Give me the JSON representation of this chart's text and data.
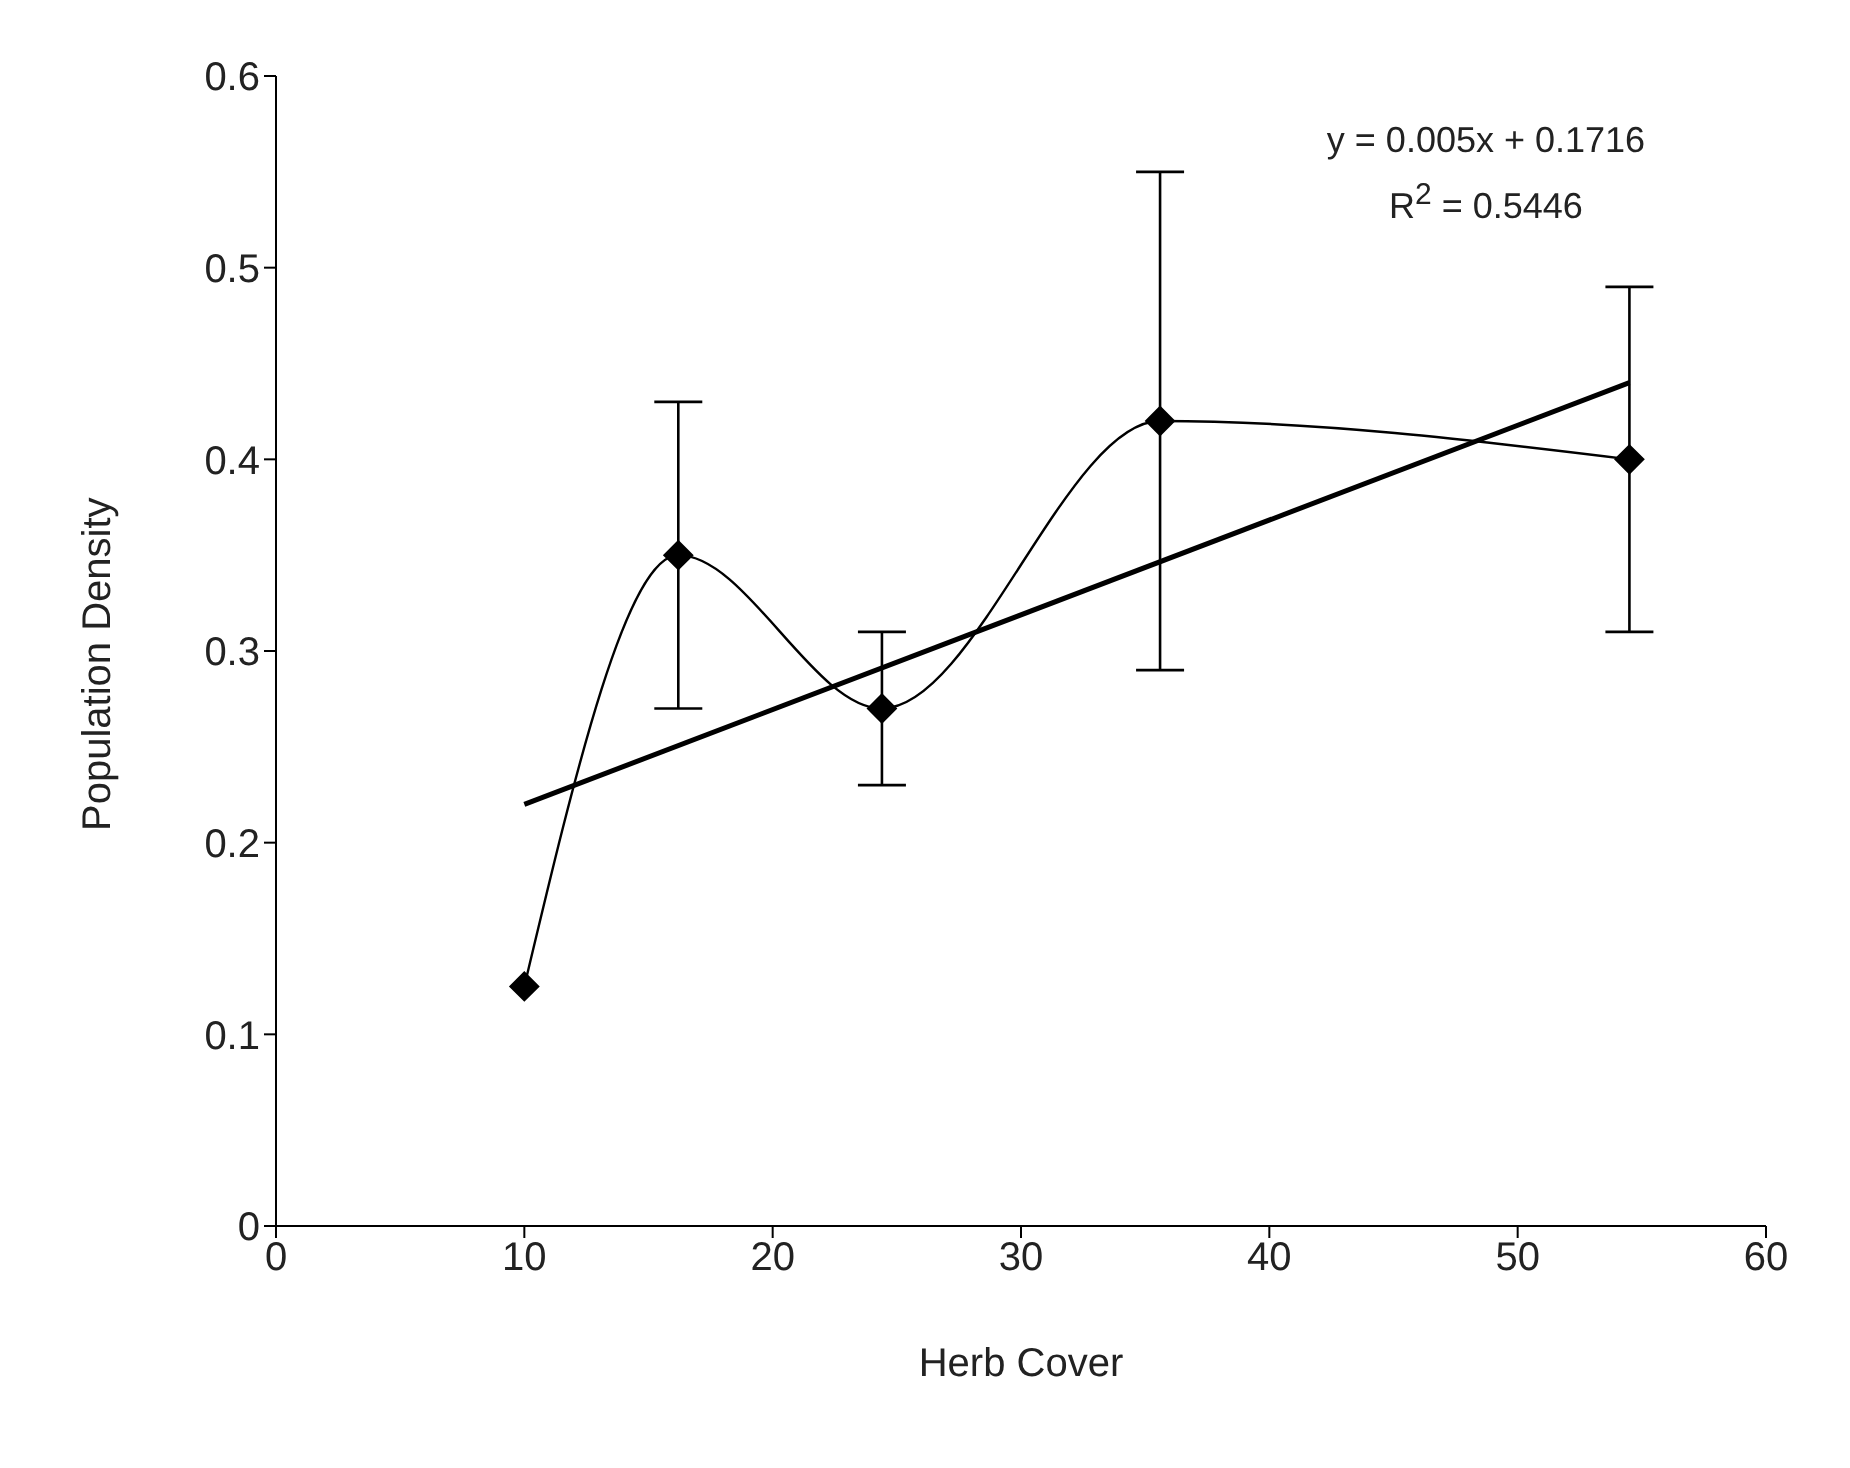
{
  "chart_data": {
    "type": "line",
    "xlabel": "Herb Cover",
    "ylabel": "Population Density",
    "xlim": [
      0,
      60
    ],
    "xticks": [
      0,
      10,
      20,
      30,
      40,
      50,
      60
    ],
    "ylim": [
      0,
      0.6
    ],
    "yticks": [
      0,
      0.1,
      0.2,
      0.3,
      0.4,
      0.5,
      0.6
    ],
    "grid": false,
    "line_style": "solid",
    "series": [
      {
        "color": "#000000",
        "marker": "diamond",
        "x": [
          10,
          16.2,
          24.4,
          35.6,
          54.5
        ],
        "values": [
          0.125,
          0.35,
          0.27,
          0.42,
          0.4
        ],
        "errors": [
          null,
          [
            0.27,
            0.43
          ],
          [
            0.23,
            0.31
          ],
          [
            0.29,
            0.55
          ],
          [
            0.31,
            0.49
          ]
        ]
      },
      {
        "color": "#000000",
        "marker": "none",
        "x": [
          10,
          54.5
        ],
        "values": [
          0.22,
          0.44
        ]
      }
    ],
    "annotations": [
      "y = 0.005x + 0.1716",
      "R$^{2}$ = 0.5446"
    ]
  }
}
